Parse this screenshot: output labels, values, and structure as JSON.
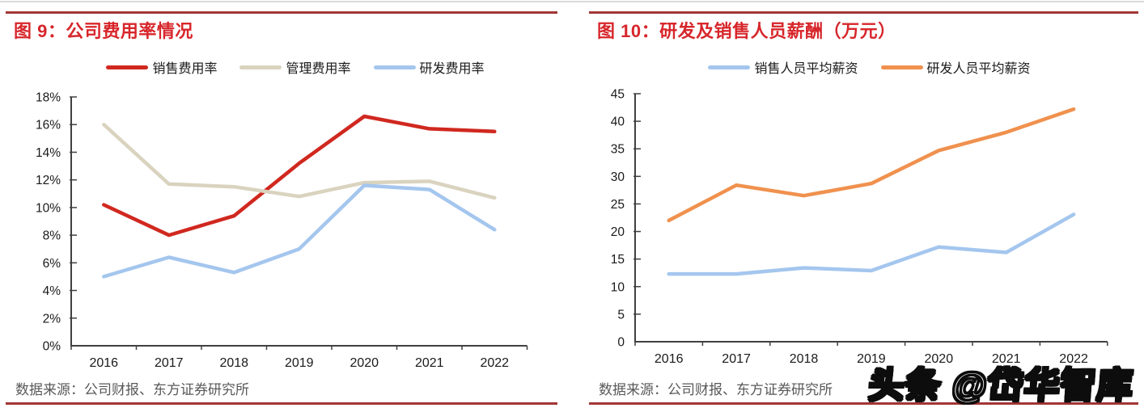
{
  "page": {
    "background": "#ffffff",
    "accent_red": "#d7262b",
    "rule_color": "#a23636"
  },
  "watermark": {
    "text": "头条 @岱华智库"
  },
  "chart_data": [
    {
      "id": "fig9",
      "type": "line",
      "title": "图 9：公司费用率情况",
      "categories": [
        "2016",
        "2017",
        "2018",
        "2019",
        "2020",
        "2021",
        "2022"
      ],
      "series": [
        {
          "name": "销售费用率",
          "color": "#d0281f",
          "values": [
            10.2,
            8.0,
            9.4,
            13.2,
            16.6,
            15.7,
            15.5
          ]
        },
        {
          "name": "管理费用率",
          "color": "#d9d3bf",
          "values": [
            16.0,
            11.7,
            11.5,
            10.8,
            11.8,
            11.9,
            10.7
          ]
        },
        {
          "name": "研发费用率",
          "color": "#a4c6ee",
          "values": [
            5.0,
            6.4,
            5.3,
            7.0,
            11.6,
            11.3,
            8.4
          ]
        }
      ],
      "ylim": [
        0,
        18
      ],
      "ytick_step": 2,
      "yticks": [
        "0%",
        "2%",
        "4%",
        "6%",
        "8%",
        "10%",
        "12%",
        "14%",
        "16%",
        "18%"
      ],
      "grid": false,
      "legend_position": "top",
      "source": "数据来源：公司财报、东方证券研究所"
    },
    {
      "id": "fig10",
      "type": "line",
      "title": "图 10：研发及销售人员薪酬（万元）",
      "categories": [
        "2016",
        "2017",
        "2018",
        "2019",
        "2020",
        "2021",
        "2022"
      ],
      "series": [
        {
          "name": "销售人员平均薪资",
          "color": "#a4c6ee",
          "values": [
            12.3,
            12.3,
            13.4,
            12.9,
            17.2,
            16.2,
            23.1
          ]
        },
        {
          "name": "研发人员平均薪资",
          "color": "#f0914e",
          "values": [
            22.0,
            28.4,
            26.5,
            28.7,
            34.7,
            38.0,
            42.2
          ]
        }
      ],
      "ylim": [
        0,
        45
      ],
      "ytick_step": 5,
      "yticks": [
        "0",
        "5",
        "10",
        "15",
        "20",
        "25",
        "30",
        "35",
        "40",
        "45"
      ],
      "grid": false,
      "legend_position": "top",
      "source": "数据来源：公司财报、东方证券研究所"
    }
  ]
}
